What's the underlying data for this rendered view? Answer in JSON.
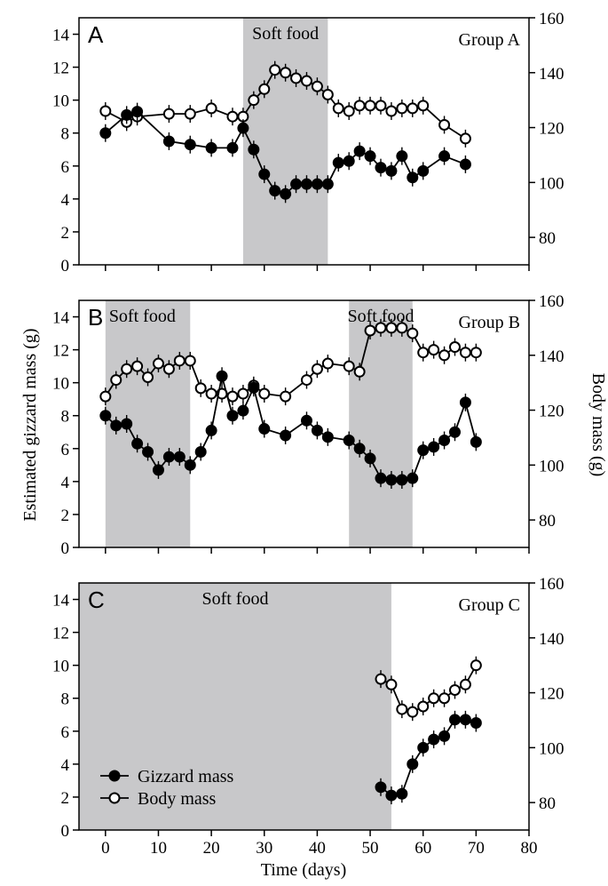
{
  "chart_data": {
    "type": "line",
    "xlabel": "Time (days)",
    "ylabel_left": "Estimated gizzard mass (g)",
    "ylabel_right": "Body mass (g)",
    "xlim": [
      -5,
      80
    ],
    "xticks": [
      0,
      10,
      20,
      30,
      40,
      50,
      60,
      70,
      80
    ],
    "ylim_left": [
      0,
      15
    ],
    "yticks_left": [
      0,
      2,
      4,
      6,
      8,
      10,
      12,
      14
    ],
    "ylim_right": [
      70,
      160
    ],
    "yticks_right": [
      80,
      100,
      120,
      140,
      160
    ],
    "legend": {
      "placement": "bottom-left of panel C",
      "entries": [
        {
          "label": "Gizzard mass",
          "marker": "filled-circle"
        },
        {
          "label": "Body mass",
          "marker": "open-circle"
        }
      ]
    },
    "panels": [
      {
        "letter": "A",
        "group_label": "Group A",
        "shaded_periods": [
          {
            "label": "Soft food",
            "x_start": 26,
            "x_end": 42
          }
        ],
        "series": [
          {
            "name": "Gizzard mass",
            "axis": "left",
            "x": [
              0,
              4,
              6,
              12,
              16,
              20,
              24,
              26,
              28,
              30,
              32,
              34,
              36,
              38,
              40,
              42,
              44,
              46,
              48,
              50,
              52,
              54,
              56,
              58,
              60,
              64,
              68
            ],
            "y": [
              8.0,
              9.1,
              9.3,
              7.5,
              7.3,
              7.1,
              7.1,
              8.3,
              7.0,
              5.5,
              4.5,
              4.3,
              4.9,
              4.9,
              4.9,
              4.9,
              6.2,
              6.3,
              6.9,
              6.6,
              5.9,
              5.7,
              6.6,
              5.3,
              5.7,
              6.6,
              6.1
            ]
          },
          {
            "name": "Body mass",
            "axis": "right",
            "x": [
              0,
              4,
              6,
              12,
              16,
              20,
              24,
              26,
              28,
              30,
              32,
              34,
              36,
              38,
              40,
              42,
              44,
              46,
              48,
              50,
              52,
              54,
              56,
              58,
              60,
              64,
              68
            ],
            "y": [
              126,
              122,
              124,
              125,
              125,
              127,
              124,
              124,
              130,
              134,
              141,
              140,
              138,
              137,
              135,
              132,
              127,
              126,
              128,
              128,
              128,
              126,
              127,
              127,
              128,
              121,
              116
            ]
          }
        ]
      },
      {
        "letter": "B",
        "group_label": "Group B",
        "shaded_periods": [
          {
            "label": "Soft food",
            "x_start": 0,
            "x_end": 16
          },
          {
            "label": "Soft food",
            "x_start": 46,
            "x_end": 58
          }
        ],
        "series": [
          {
            "name": "Gizzard mass",
            "axis": "left",
            "x": [
              0,
              2,
              4,
              6,
              8,
              10,
              12,
              14,
              16,
              18,
              20,
              22,
              24,
              26,
              28,
              30,
              34,
              38,
              40,
              42,
              46,
              48,
              50,
              52,
              54,
              56,
              58,
              60,
              62,
              64,
              66,
              68,
              70
            ],
            "y": [
              8.0,
              7.4,
              7.5,
              6.3,
              5.8,
              4.7,
              5.5,
              5.5,
              5.0,
              5.8,
              7.1,
              10.4,
              8.0,
              8.3,
              9.7,
              7.2,
              6.8,
              7.7,
              7.1,
              6.7,
              6.5,
              6.0,
              5.4,
              4.2,
              4.1,
              4.1,
              4.2,
              5.9,
              6.1,
              6.5,
              7.0,
              8.8,
              6.4
            ]
          },
          {
            "name": "Body mass",
            "axis": "right",
            "x": [
              0,
              2,
              4,
              6,
              8,
              10,
              12,
              14,
              16,
              18,
              20,
              22,
              24,
              26,
              28,
              30,
              34,
              38,
              40,
              42,
              46,
              48,
              50,
              52,
              54,
              56,
              58,
              60,
              62,
              64,
              66,
              68,
              70
            ],
            "y": [
              125,
              131,
              135,
              136,
              132,
              137,
              135,
              138,
              138,
              128,
              126,
              126,
              125,
              126,
              129,
              126,
              125,
              131,
              135,
              137,
              136,
              134,
              149,
              150,
              150,
              150,
              148,
              141,
              142,
              140,
              143,
              141,
              141
            ]
          }
        ]
      },
      {
        "letter": "C",
        "group_label": "Group C",
        "shaded_periods": [
          {
            "label": "Soft food",
            "x_start": -5,
            "x_end": 54
          }
        ],
        "series": [
          {
            "name": "Gizzard mass",
            "axis": "left",
            "x": [
              52,
              54,
              56,
              58,
              60,
              62,
              64,
              66,
              68,
              70
            ],
            "y": [
              2.6,
              2.1,
              2.2,
              4.0,
              5.0,
              5.5,
              5.7,
              6.7,
              6.7,
              6.5
            ]
          },
          {
            "name": "Body mass",
            "axis": "right",
            "x": [
              52,
              54,
              56,
              58,
              60,
              62,
              64,
              66,
              68,
              70
            ],
            "y": [
              125,
              123,
              114,
              113,
              115,
              118,
              118,
              121,
              123,
              130
            ]
          }
        ]
      }
    ]
  }
}
